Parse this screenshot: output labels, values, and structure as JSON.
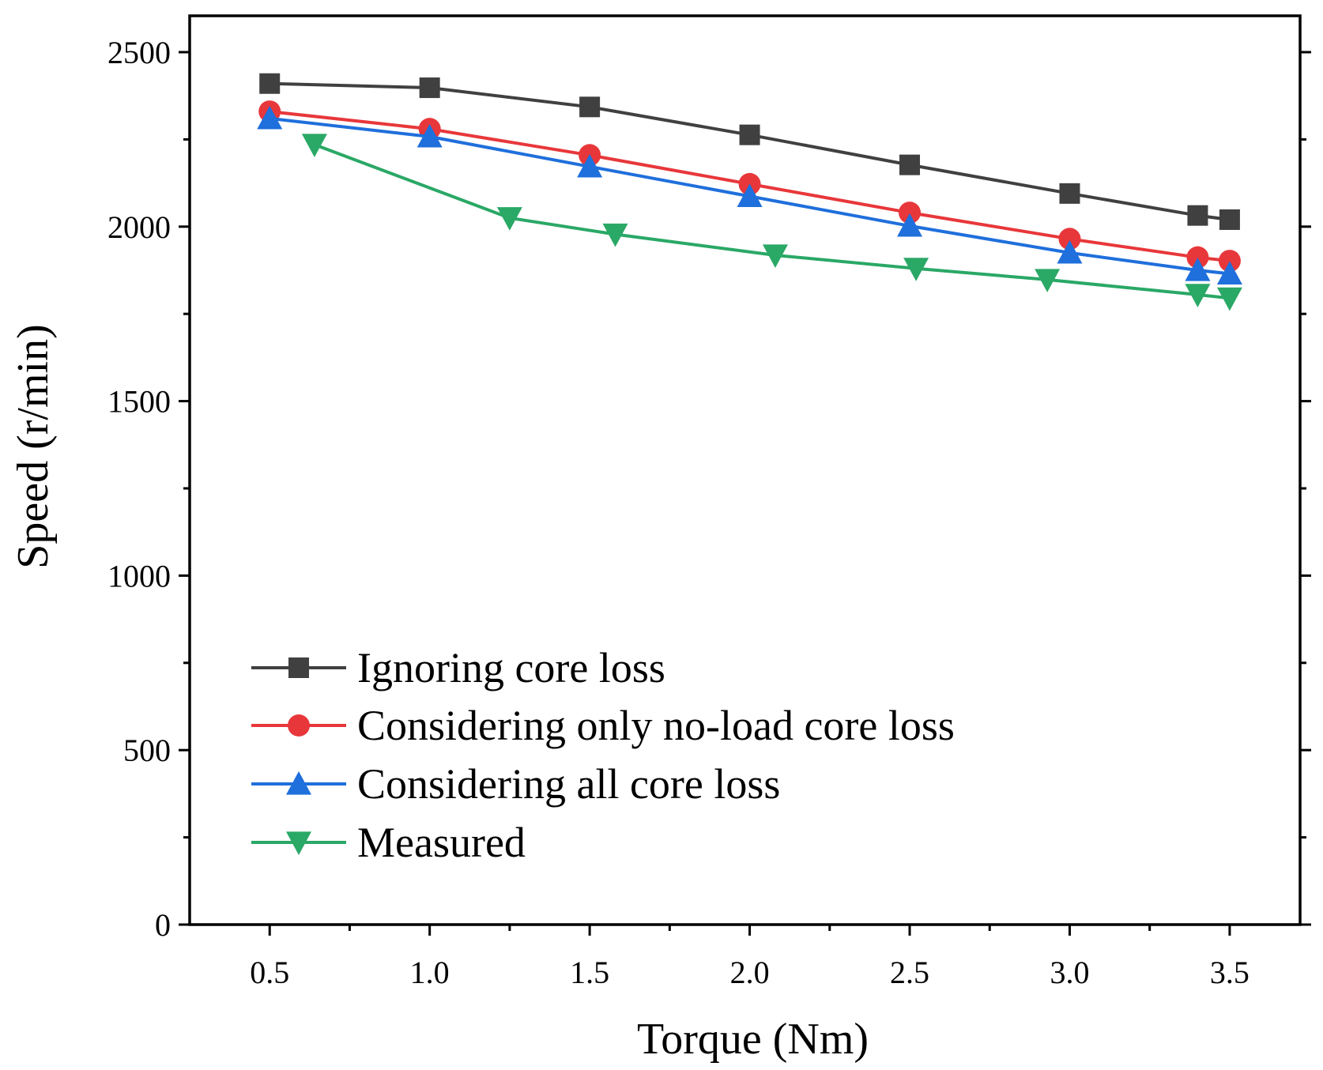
{
  "chart_data": {
    "type": "line",
    "title": "",
    "xlabel": "Torque (Nm)",
    "ylabel": "Speed (r/min)",
    "xlim": [
      0.25,
      3.72
    ],
    "ylim": [
      0,
      2500
    ],
    "xticks": [
      0.5,
      1.0,
      1.5,
      2.0,
      2.5,
      3.0,
      3.5
    ],
    "xtick_labels": [
      "0.5",
      "1.0",
      "1.5",
      "2.0",
      "2.5",
      "3.0",
      "3.5"
    ],
    "yticks": [
      0,
      500,
      1000,
      1500,
      2000,
      2500
    ],
    "ytick_labels": [
      "0",
      "500",
      "1000",
      "1500",
      "2000",
      "2500"
    ],
    "grid": false,
    "legend_position": "bottom-left",
    "series": [
      {
        "name": "Ignoring core loss",
        "color": "#404040",
        "marker": "square",
        "x": [
          0.5,
          1.0,
          1.5,
          2.0,
          2.5,
          3.0,
          3.4,
          3.5
        ],
        "y": [
          2410,
          2398,
          2343,
          2263,
          2177,
          2095,
          2032,
          2020
        ]
      },
      {
        "name": "Considering only no-load core loss",
        "color": "#e8373a",
        "marker": "circle",
        "x": [
          0.5,
          1.0,
          1.5,
          2.0,
          2.5,
          3.0,
          3.4,
          3.5
        ],
        "y": [
          2330,
          2280,
          2205,
          2122,
          2040,
          1965,
          1912,
          1902
        ]
      },
      {
        "name": "Considering all core loss",
        "color": "#1f6fdc",
        "marker": "triangle-up",
        "x": [
          0.5,
          1.0,
          1.5,
          2.0,
          2.5,
          3.0,
          3.4,
          3.5
        ],
        "y": [
          2310,
          2258,
          2172,
          2087,
          2002,
          1925,
          1875,
          1865
        ]
      },
      {
        "name": "Measured",
        "color": "#2aa866",
        "marker": "triangle-down",
        "x": [
          0.64,
          1.25,
          1.58,
          2.08,
          2.52,
          2.93,
          3.4,
          3.5
        ],
        "y": [
          2235,
          2025,
          1978,
          1918,
          1880,
          1848,
          1805,
          1795
        ]
      }
    ]
  }
}
